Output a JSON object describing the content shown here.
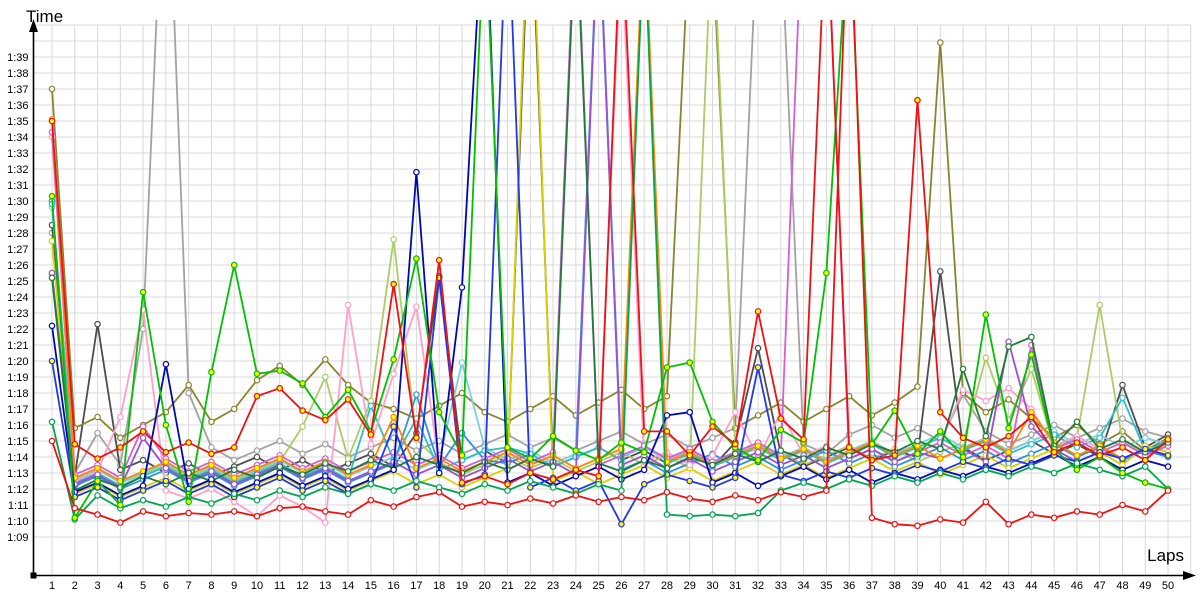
{
  "chart_data": {
    "type": "line",
    "title": "",
    "xlabel": "Laps",
    "ylabel": "Time",
    "x": [
      1,
      2,
      3,
      4,
      5,
      6,
      7,
      8,
      9,
      10,
      11,
      12,
      13,
      14,
      15,
      16,
      17,
      18,
      19,
      20,
      21,
      22,
      23,
      24,
      25,
      26,
      27,
      28,
      29,
      30,
      31,
      32,
      33,
      34,
      35,
      36,
      37,
      38,
      39,
      40,
      41,
      42,
      43,
      44,
      45,
      46,
      47,
      48,
      49,
      50
    ],
    "x_tick_labels": [
      "1",
      "2",
      "3",
      "4",
      "5",
      "6",
      "7",
      "8",
      "9",
      "10",
      "11",
      "12",
      "13",
      "14",
      "15",
      "16",
      "17",
      "18",
      "19",
      "20",
      "21",
      "22",
      "23",
      "24",
      "25",
      "26",
      "27",
      "28",
      "29",
      "30",
      "31",
      "32",
      "33",
      "34",
      "35",
      "36",
      "37",
      "38",
      "39",
      "40",
      "41",
      "42",
      "43",
      "44",
      "45",
      "46",
      "47",
      "48",
      "49",
      "50"
    ],
    "y_tick_labels": [
      "1:09",
      "1:10",
      "1:11",
      "1:12",
      "1:13",
      "1:14",
      "1:15",
      "1:16",
      "1:17",
      "1:18",
      "1:19",
      "1:20",
      "1:21",
      "1:22",
      "1:23",
      "1:24",
      "1:25",
      "1:26",
      "1:27",
      "1:28",
      "1:29",
      "1:30",
      "1:31",
      "1:32",
      "1:33",
      "1:34",
      "1:35",
      "1:36",
      "1:37",
      "1:38",
      "1:39"
    ],
    "ylim_seconds": [
      69,
      99
    ],
    "grid": true,
    "legend": "none",
    "note": "values are lap times in seconds; values >= 100 run off the top of the plot (pit stops)",
    "series": [
      {
        "name": "grey",
        "color": "#a2a2a2",
        "marker": "#ffffff",
        "values": [
          88.0,
          73.0,
          75.5,
          73.5,
          82.0,
          115.0,
          78.0,
          74.6,
          73.8,
          74.4,
          75.0,
          74.2,
          74.8,
          74.0,
          74.6,
          75.2,
          74.4,
          75.0,
          74.2,
          74.8,
          75.4,
          74.6,
          75.2,
          74.4,
          75.0,
          75.6,
          74.8,
          75.4,
          74.6,
          75.2,
          75.8,
          108.0,
          107.0,
          74.8,
          74.2,
          75.4,
          76.0,
          75.2,
          75.8,
          75.0,
          77.9,
          75.6,
          74.8,
          75.4,
          76.0,
          75.2,
          75.8,
          76.4,
          75.6,
          75.2
        ]
      },
      {
        "name": "dark-grey",
        "color": "#4d4d4d",
        "marker": "#ffffff",
        "values": [
          88.5,
          72.8,
          82.3,
          73.2,
          73.8,
          73.0,
          73.6,
          72.8,
          73.4,
          74.0,
          73.2,
          73.8,
          73.0,
          73.6,
          74.2,
          73.4,
          75.5,
          85.3,
          73.8,
          74.4,
          73.6,
          110.0,
          73.4,
          74.0,
          74.6,
          73.8,
          74.4,
          73.6,
          74.2,
          73.4,
          74.9,
          80.8,
          74.2,
          73.4,
          74.0,
          74.6,
          73.8,
          74.4,
          74.0,
          85.6,
          74.6,
          73.8,
          74.4,
          75.0,
          74.2,
          74.8,
          74.0,
          78.5,
          74.6,
          75.4
        ]
      },
      {
        "name": "olive",
        "color": "#8a8430",
        "marker": "#ffffff",
        "values": [
          97.0,
          75.8,
          76.5,
          75.2,
          76.0,
          76.8,
          78.5,
          76.2,
          77.0,
          78.8,
          79.7,
          78.5,
          80.1,
          78.5,
          77.4,
          77.0,
          76.4,
          77.2,
          78.0,
          76.8,
          76.2,
          77.0,
          77.8,
          76.6,
          77.4,
          78.2,
          77.0,
          77.8,
          107.0,
          106.0,
          75.8,
          76.6,
          77.4,
          76.2,
          77.0,
          77.8,
          76.6,
          77.4,
          78.4,
          99.9,
          78.0,
          76.8,
          77.6,
          76.4,
          75.2,
          76.0,
          74.8,
          75.6,
          74.4,
          75.2
        ]
      },
      {
        "name": "light-green",
        "color": "#accc66",
        "marker": "#ffffff",
        "values": [
          85.4,
          72.0,
          73.3,
          72.4,
          72.9,
          73.5,
          72.7,
          73.3,
          72.5,
          73.1,
          73.7,
          75.9,
          79.0,
          73.9,
          77.5,
          87.6,
          75.1,
          73.7,
          72.9,
          73.5,
          74.1,
          73.3,
          73.9,
          73.1,
          73.7,
          74.3,
          73.5,
          74.1,
          73.3,
          108.0,
          74.5,
          73.7,
          74.3,
          73.5,
          74.1,
          74.7,
          73.9,
          74.5,
          73.7,
          74.3,
          74.9,
          80.2,
          76.3,
          79.5,
          74.6,
          75.2,
          83.5,
          75.0,
          74.2,
          74.8
        ]
      },
      {
        "name": "sky-blue",
        "color": "#7ccfe0",
        "marker": "#ffffff",
        "values": [
          89.6,
          72.6,
          73.2,
          72.4,
          73.0,
          73.6,
          72.8,
          73.4,
          72.6,
          73.2,
          73.8,
          73.0,
          73.6,
          72.8,
          73.4,
          74.0,
          73.2,
          73.8,
          79.9,
          74.6,
          73.8,
          74.4,
          73.6,
          74.2,
          108.5,
          74.0,
          74.6,
          73.8,
          74.4,
          73.6,
          74.2,
          74.8,
          74.0,
          74.6,
          73.8,
          74.4,
          75.0,
          74.2,
          74.8,
          75.4,
          74.6,
          75.2,
          74.4,
          75.0,
          75.6,
          74.8,
          75.4,
          74.6,
          75.2,
          74.8
        ]
      },
      {
        "name": "dodger-blue",
        "color": "#2f8fe6",
        "marker": "#ffffff",
        "values": [
          90.0,
          72.2,
          72.8,
          72.0,
          72.6,
          73.2,
          72.4,
          73.0,
          72.2,
          72.8,
          73.4,
          72.6,
          73.2,
          72.4,
          73.0,
          73.6,
          77.9,
          73.4,
          75.5,
          73.8,
          73.6,
          74.2,
          73.4,
          74.0,
          108.0,
          73.2,
          73.8,
          73.0,
          73.6,
          74.2,
          73.4,
          74.0,
          73.2,
          73.8,
          74.4,
          73.6,
          74.2,
          73.4,
          74.0,
          74.6,
          73.8,
          74.4,
          73.6,
          74.2,
          74.8,
          74.0,
          74.6,
          73.8,
          74.4,
          74.0
        ]
      },
      {
        "name": "cyan",
        "color": "#2cc0cc",
        "marker": "#ffffff",
        "values": [
          89.8,
          72.4,
          73.0,
          72.2,
          72.8,
          73.4,
          72.6,
          73.2,
          72.4,
          73.0,
          73.6,
          72.8,
          73.4,
          72.6,
          77.2,
          73.8,
          76.4,
          73.2,
          73.8,
          74.4,
          74.6,
          74.2,
          73.4,
          74.0,
          74.6,
          73.8,
          107.0,
          73.6,
          74.2,
          73.4,
          74.0,
          74.6,
          73.8,
          74.4,
          73.6,
          74.2,
          74.8,
          74.0,
          74.6,
          75.2,
          74.4,
          75.0,
          74.2,
          74.8,
          75.4,
          74.6,
          75.2,
          77.7,
          74.4,
          75.0
        ]
      },
      {
        "name": "yellow",
        "color": "#d8d000",
        "marker": "#ffffff",
        "values": [
          87.5,
          71.7,
          72.3,
          71.5,
          72.1,
          72.7,
          71.9,
          72.5,
          71.7,
          72.3,
          72.9,
          72.1,
          72.7,
          71.9,
          72.5,
          73.1,
          72.3,
          72.9,
          72.1,
          72.7,
          73.3,
          112.0,
          72.5,
          73.1,
          72.3,
          72.9,
          73.5,
          72.7,
          73.3,
          72.5,
          73.1,
          73.7,
          72.9,
          73.5,
          72.7,
          73.3,
          73.9,
          73.1,
          73.7,
          72.9,
          73.5,
          74.1,
          73.3,
          73.9,
          74.5,
          73.7,
          74.3,
          73.5,
          74.7,
          74.3
        ]
      },
      {
        "name": "pink",
        "color": "#ff9fca",
        "marker": "#ffffff",
        "values": [
          94.0,
          72.5,
          73.1,
          76.5,
          83.2,
          71.9,
          71.4,
          72.0,
          71.2,
          70.3,
          71.6,
          70.9,
          69.9,
          83.5,
          74.8,
          79.2,
          83.4,
          73.5,
          73.1,
          73.7,
          74.3,
          73.5,
          74.1,
          73.3,
          73.9,
          106.0,
          73.7,
          74.3,
          73.5,
          74.1,
          76.8,
          73.9,
          76.8,
          74.1,
          74.7,
          73.9,
          74.5,
          73.7,
          74.3,
          74.9,
          78.2,
          77.5,
          78.3,
          77.0,
          74.7,
          75.3,
          74.5,
          75.1,
          74.3,
          74.9
        ]
      },
      {
        "name": "magenta",
        "color": "#d45fd4",
        "marker": "#ffffff",
        "values": [
          94.3,
          72.9,
          73.5,
          72.7,
          75.9,
          73.9,
          73.1,
          73.7,
          72.9,
          73.5,
          74.1,
          73.3,
          73.9,
          73.1,
          73.7,
          74.3,
          73.5,
          74.1,
          73.3,
          73.9,
          74.5,
          73.7,
          74.3,
          109.0,
          73.5,
          74.1,
          74.7,
          73.9,
          74.5,
          73.7,
          74.3,
          74.9,
          74.1,
          110.0,
          109.0,
          73.9,
          74.5,
          73.7,
          74.3,
          74.9,
          74.1,
          74.7,
          73.9,
          81.0,
          74.5,
          75.1,
          74.3,
          74.9,
          74.1,
          74.7
        ]
      },
      {
        "name": "purple",
        "color": "#9a50d0",
        "marker": "#ffffff",
        "values": [
          85.5,
          72.3,
          72.9,
          72.1,
          75.2,
          73.3,
          72.5,
          73.1,
          72.3,
          72.9,
          73.5,
          72.7,
          73.3,
          72.5,
          73.1,
          73.7,
          72.9,
          73.5,
          72.7,
          73.3,
          73.9,
          73.1,
          73.7,
          72.9,
          108.0,
          73.5,
          74.1,
          73.3,
          73.9,
          73.1,
          73.7,
          74.3,
          73.5,
          74.1,
          73.3,
          73.9,
          74.5,
          73.7,
          74.3,
          73.9,
          74.5,
          73.7,
          81.2,
          75.9,
          74.5,
          73.7,
          74.3,
          73.9,
          74.5,
          74.1
        ]
      },
      {
        "name": "orange",
        "color": "#ff8800",
        "marker": "#ffff00",
        "values": [
          95.1,
          72.7,
          73.3,
          72.5,
          73.1,
          73.7,
          72.9,
          73.5,
          72.7,
          73.3,
          73.9,
          73.1,
          73.7,
          72.9,
          73.5,
          76.5,
          73.3,
          73.9,
          73.1,
          73.7,
          74.3,
          73.5,
          74.1,
          73.3,
          73.9,
          74.5,
          108.0,
          73.7,
          74.3,
          73.5,
          74.1,
          74.7,
          73.9,
          74.5,
          73.7,
          74.3,
          74.9,
          74.1,
          74.7,
          73.9,
          74.5,
          75.1,
          74.3,
          76.8,
          74.9,
          74.1,
          74.7,
          73.9,
          74.5,
          74.1
        ]
      },
      {
        "name": "forest-green",
        "color": "#227a38",
        "marker": "#ffffff",
        "values": [
          85.2,
          71.9,
          72.6,
          72.1,
          72.8,
          72.3,
          73.0,
          72.5,
          73.2,
          72.7,
          73.4,
          72.9,
          73.6,
          73.1,
          73.8,
          73.3,
          74.0,
          73.5,
          73.0,
          73.7,
          73.2,
          73.9,
          73.4,
          108.0,
          73.6,
          73.1,
          73.8,
          73.3,
          74.0,
          73.5,
          74.2,
          73.7,
          74.4,
          73.9,
          74.6,
          74.1,
          74.8,
          74.3,
          75.0,
          74.5,
          79.5,
          75.3,
          80.9,
          81.5,
          74.7,
          76.2,
          74.5,
          75.1,
          74.3,
          74.9
        ]
      },
      {
        "name": "navy-blue",
        "color": "#0008b0",
        "marker": "#ffffff",
        "values": [
          82.2,
          71.8,
          72.4,
          71.6,
          72.2,
          79.8,
          72.0,
          72.6,
          71.8,
          72.4,
          73.0,
          72.2,
          72.8,
          72.0,
          72.6,
          73.2,
          91.8,
          73.0,
          84.6,
          110.0,
          72.4,
          73.0,
          72.2,
          72.8,
          73.4,
          72.6,
          73.2,
          76.6,
          76.8,
          72.4,
          73.0,
          72.2,
          72.8,
          73.4,
          72.6,
          73.2,
          72.4,
          73.0,
          72.6,
          73.2,
          72.8,
          73.4,
          73.0,
          73.6,
          74.2,
          73.4,
          74.0,
          73.2,
          73.8,
          73.4
        ]
      },
      {
        "name": "blue",
        "color": "#2238e6",
        "marker": "#ffff00",
        "values": [
          80.0,
          71.5,
          72.1,
          71.3,
          71.9,
          72.5,
          71.7,
          72.3,
          71.5,
          72.1,
          72.7,
          71.9,
          72.5,
          71.7,
          72.3,
          75.9,
          72.1,
          85.2,
          72.3,
          72.9,
          109.0,
          72.1,
          72.7,
          71.9,
          72.5,
          69.8,
          72.3,
          72.9,
          72.5,
          72.1,
          72.7,
          79.6,
          72.9,
          72.5,
          73.1,
          72.7,
          73.3,
          72.9,
          73.5,
          73.1,
          73.7,
          73.3,
          73.9,
          73.5,
          74.1,
          73.7,
          74.3,
          73.9,
          74.5,
          74.1
        ]
      },
      {
        "name": "bright-green",
        "color": "#00a550",
        "marker": "#ffffff",
        "values": [
          76.2,
          70.1,
          71.6,
          70.8,
          71.3,
          70.9,
          71.5,
          71.1,
          71.7,
          71.3,
          71.9,
          71.5,
          72.1,
          71.7,
          72.3,
          71.9,
          72.5,
          72.1,
          71.7,
          72.3,
          71.9,
          72.5,
          72.1,
          71.7,
          72.3,
          71.9,
          107.0,
          70.4,
          70.3,
          70.4,
          70.3,
          70.5,
          71.9,
          72.4,
          72.0,
          72.6,
          72.2,
          72.8,
          72.4,
          73.0,
          72.6,
          73.2,
          72.8,
          73.4,
          73.0,
          73.6,
          73.2,
          72.8,
          73.4,
          72.0
        ]
      },
      {
        "name": "green",
        "color": "#00c000",
        "marker": "#ffff00",
        "values": [
          90.3,
          70.2,
          72.5,
          71.0,
          84.3,
          76.0,
          71.2,
          79.3,
          86.0,
          79.2,
          79.4,
          78.6,
          76.5,
          78.2,
          75.6,
          80.1,
          86.4,
          76.8,
          74.1,
          108.0,
          74.6,
          73.9,
          75.3,
          74.4,
          73.8,
          74.9,
          74.3,
          79.6,
          79.9,
          76.2,
          74.6,
          73.8,
          75.7,
          74.9,
          85.5,
          108.0,
          74.8,
          76.9,
          74.2,
          75.6,
          74.0,
          82.9,
          75.8,
          80.4,
          74.5,
          73.2,
          74.0,
          73.0,
          72.4,
          72.0
        ]
      },
      {
        "name": "red",
        "color": "#ee1111",
        "marker": "#ffff00",
        "values": [
          95.0,
          74.8,
          73.9,
          74.6,
          75.6,
          74.3,
          74.9,
          74.2,
          74.6,
          77.8,
          78.3,
          76.9,
          76.3,
          77.6,
          75.4,
          84.8,
          75.2,
          86.3,
          72.4,
          72.8,
          72.3,
          73.0,
          72.6,
          73.2,
          72.8,
          108.0,
          75.6,
          75.6,
          74.1,
          75.9,
          74.8,
          83.1,
          76.4,
          75.1,
          108.5,
          74.6,
          73.8,
          74.1,
          96.3,
          76.8,
          75.2,
          74.6,
          75.3,
          76.5,
          74.3,
          74.9,
          74.1,
          74.6,
          73.8,
          75.1
        ]
      },
      {
        "name": "red-leader",
        "color": "#ee1111",
        "marker": "#ffffff",
        "values": [
          75.0,
          70.8,
          70.4,
          69.9,
          70.6,
          70.3,
          70.5,
          70.4,
          70.6,
          70.3,
          70.8,
          70.9,
          70.6,
          70.4,
          71.3,
          70.9,
          71.5,
          71.8,
          70.9,
          71.2,
          71.0,
          71.4,
          71.1,
          71.6,
          71.2,
          71.5,
          71.3,
          71.8,
          71.4,
          71.2,
          71.6,
          71.3,
          71.8,
          71.5,
          71.9,
          110.0,
          70.2,
          69.8,
          69.7,
          70.1,
          69.9,
          71.2,
          69.8,
          70.4,
          70.2,
          70.6,
          70.4,
          71.0,
          70.6,
          71.9
        ]
      }
    ]
  },
  "labels": {
    "y_axis_title": "Time",
    "x_axis_title": "Laps"
  },
  "style": {
    "background": "#ffffff",
    "grid_color": "#d8d8d8",
    "axis_color": "#000000",
    "tick_font_px": 11,
    "axis_title_font_px": 17
  }
}
